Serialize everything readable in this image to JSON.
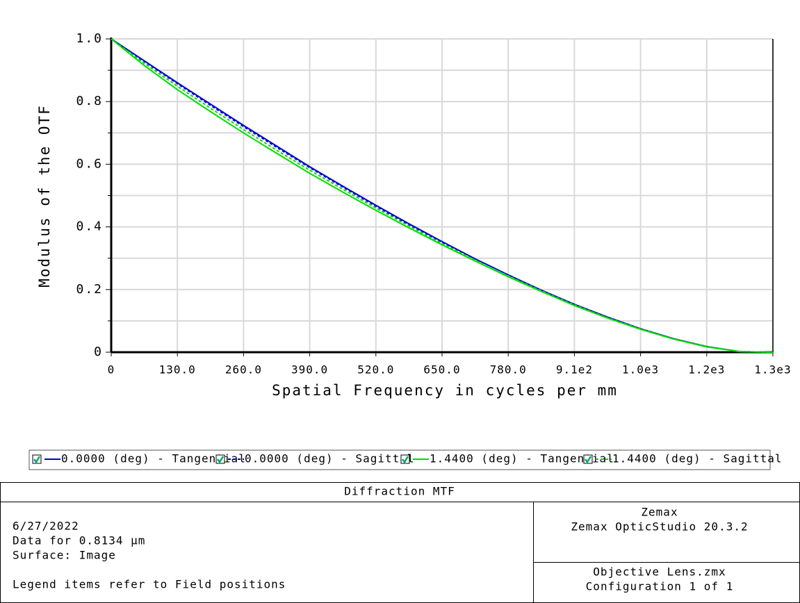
{
  "chart_data": {
    "type": "line",
    "y_label": "Modulus of the OTF",
    "x_label": "Spatial Frequency in cycles per mm",
    "x": [
      0,
      65,
      130,
      195,
      260,
      325,
      390,
      455,
      520,
      585,
      650,
      715,
      780,
      845,
      910,
      975,
      1040,
      1105,
      1170,
      1235,
      1300
    ],
    "series": [
      {
        "name": "0.0000 (deg) - Tangential",
        "color": "#0000cc",
        "dash": "solid",
        "values": [
          1,
          0.93,
          0.86,
          0.792,
          0.724,
          0.658,
          0.592,
          0.53,
          0.469,
          0.41,
          0.353,
          0.298,
          0.247,
          0.198,
          0.153,
          0.112,
          0.075,
          0.043,
          0.018,
          0.002,
          0
        ]
      },
      {
        "name": "0.0000 (deg) - Sagittal",
        "color": "#0000cc",
        "dash": "dashed",
        "values": [
          1,
          0.928,
          0.857,
          0.788,
          0.72,
          0.654,
          0.589,
          0.527,
          0.466,
          0.407,
          0.351,
          0.297,
          0.246,
          0.197,
          0.152,
          0.111,
          0.074,
          0.043,
          0.018,
          0.002,
          0
        ]
      },
      {
        "name": "1.4400 (deg) - Tangential",
        "color": "#00dd00",
        "dash": "solid",
        "values": [
          1,
          0.915,
          0.838,
          0.768,
          0.7,
          0.635,
          0.571,
          0.511,
          0.453,
          0.397,
          0.343,
          0.291,
          0.241,
          0.194,
          0.149,
          0.109,
          0.073,
          0.042,
          0.017,
          0.002,
          0
        ]
      },
      {
        "name": "1.4400 (deg) - Sagittal",
        "color": "#00dd00",
        "dash": "dashed",
        "values": [
          1,
          0.922,
          0.849,
          0.779,
          0.711,
          0.645,
          0.581,
          0.52,
          0.46,
          0.403,
          0.347,
          0.294,
          0.244,
          0.196,
          0.151,
          0.11,
          0.074,
          0.042,
          0.018,
          0.002,
          0
        ]
      }
    ],
    "xlim": [
      0,
      1300
    ],
    "xticks": [
      0,
      {
        "value": 130,
        "label": "130.0"
      },
      {
        "value": 260,
        "label": "260.0"
      },
      {
        "value": 390,
        "label": "390.0"
      },
      {
        "value": 520,
        "label": "520.0"
      },
      {
        "value": 650,
        "label": "650.0"
      },
      {
        "value": 780,
        "label": "780.0"
      },
      {
        "value": 910,
        "label": "9.1e2"
      },
      {
        "value": 1040,
        "label": "1.0e3"
      },
      {
        "value": 1170,
        "label": "1.2e3"
      },
      {
        "value": 1300,
        "label": "1.3e3"
      }
    ],
    "ylim": [
      0,
      1
    ],
    "yticks": [
      0,
      0.2,
      0.4,
      0.6,
      0.8,
      {
        "value": 1,
        "label": "1.0"
      }
    ],
    "yminorticks": [
      0.1,
      0.3,
      0.5,
      0.7,
      0.9
    ],
    "grid": true
  },
  "footer": {
    "title": "Diffraction MTF",
    "left": [
      "6/27/2022",
      "Data for 0.8134 µm",
      "Surface: Image",
      "Legend items refer to Field positions"
    ],
    "right_top": [
      "Zemax",
      "Zemax OpticStudio 20.3.2"
    ],
    "right_bottom": [
      "Objective Lens.zmx",
      "Configuration 1 of 1"
    ]
  }
}
